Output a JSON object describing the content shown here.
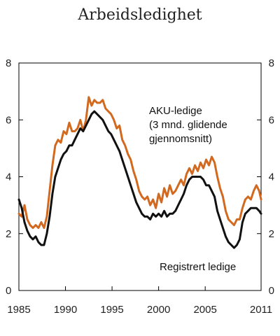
{
  "chart_data": {
    "type": "line",
    "title": "Arbeidsledighet",
    "xlabel": "",
    "ylabel": "",
    "xlim": [
      1985,
      2011
    ],
    "ylim": [
      0,
      8
    ],
    "grid": false,
    "x_ticks": [
      "1985",
      "1990",
      "1995",
      "2000",
      "2005",
      "2011"
    ],
    "x_tick_values": [
      1985,
      1990,
      1995,
      2000,
      2005,
      2011
    ],
    "y_ticks": [
      "0",
      "2",
      "4",
      "6",
      "8"
    ],
    "y_tick_values": [
      0,
      2,
      4,
      6,
      8
    ],
    "annotations": {
      "aku_line1": "AKU-ledige",
      "aku_line2": "(3 mnd. glidende",
      "aku_line3": "gjennomsnitt)",
      "registered": "Registrert ledige"
    },
    "series": [
      {
        "key": "aku",
        "color": "#d2691e",
        "points": [
          [
            1985.0,
            2.7
          ],
          [
            1985.3,
            2.6
          ],
          [
            1985.6,
            3.0
          ],
          [
            1985.9,
            2.5
          ],
          [
            1986.2,
            2.3
          ],
          [
            1986.5,
            2.2
          ],
          [
            1986.8,
            2.3
          ],
          [
            1987.1,
            2.2
          ],
          [
            1987.4,
            2.4
          ],
          [
            1987.7,
            2.2
          ],
          [
            1988.0,
            2.6
          ],
          [
            1988.3,
            3.5
          ],
          [
            1988.6,
            4.4
          ],
          [
            1988.9,
            5.1
          ],
          [
            1989.2,
            5.3
          ],
          [
            1989.5,
            5.2
          ],
          [
            1989.8,
            5.6
          ],
          [
            1990.1,
            5.5
          ],
          [
            1990.4,
            5.9
          ],
          [
            1990.7,
            5.6
          ],
          [
            1991.0,
            5.6
          ],
          [
            1991.3,
            5.7
          ],
          [
            1991.6,
            6.0
          ],
          [
            1991.9,
            5.6
          ],
          [
            1992.2,
            6.0
          ],
          [
            1992.5,
            6.8
          ],
          [
            1992.8,
            6.5
          ],
          [
            1993.1,
            6.7
          ],
          [
            1993.4,
            6.6
          ],
          [
            1993.7,
            6.6
          ],
          [
            1994.0,
            6.7
          ],
          [
            1994.3,
            6.4
          ],
          [
            1994.6,
            6.3
          ],
          [
            1994.9,
            6.2
          ],
          [
            1995.2,
            6.0
          ],
          [
            1995.5,
            5.7
          ],
          [
            1995.8,
            5.8
          ],
          [
            1996.1,
            5.3
          ],
          [
            1996.4,
            5.1
          ],
          [
            1996.7,
            4.8
          ],
          [
            1997.0,
            4.6
          ],
          [
            1997.3,
            4.2
          ],
          [
            1997.6,
            3.9
          ],
          [
            1997.9,
            3.5
          ],
          [
            1998.2,
            3.3
          ],
          [
            1998.5,
            3.2
          ],
          [
            1998.8,
            3.3
          ],
          [
            1999.1,
            3.0
          ],
          [
            1999.4,
            3.2
          ],
          [
            1999.7,
            2.9
          ],
          [
            2000.0,
            3.4
          ],
          [
            2000.3,
            3.1
          ],
          [
            2000.6,
            3.6
          ],
          [
            2000.9,
            3.3
          ],
          [
            2001.2,
            3.7
          ],
          [
            2001.5,
            3.4
          ],
          [
            2001.8,
            3.5
          ],
          [
            2002.1,
            3.7
          ],
          [
            2002.4,
            3.9
          ],
          [
            2002.7,
            3.7
          ],
          [
            2003.0,
            4.1
          ],
          [
            2003.3,
            4.3
          ],
          [
            2003.6,
            4.1
          ],
          [
            2003.9,
            4.4
          ],
          [
            2004.2,
            4.2
          ],
          [
            2004.5,
            4.5
          ],
          [
            2004.8,
            4.3
          ],
          [
            2005.1,
            4.6
          ],
          [
            2005.4,
            4.4
          ],
          [
            2005.7,
            4.7
          ],
          [
            2006.0,
            4.5
          ],
          [
            2006.3,
            4.0
          ],
          [
            2006.6,
            3.6
          ],
          [
            2006.9,
            3.3
          ],
          [
            2007.2,
            2.8
          ],
          [
            2007.5,
            2.5
          ],
          [
            2007.8,
            2.4
          ],
          [
            2008.1,
            2.3
          ],
          [
            2008.4,
            2.5
          ],
          [
            2008.7,
            2.5
          ],
          [
            2009.0,
            2.9
          ],
          [
            2009.3,
            3.2
          ],
          [
            2009.6,
            3.3
          ],
          [
            2009.9,
            3.2
          ],
          [
            2010.2,
            3.5
          ],
          [
            2010.5,
            3.7
          ],
          [
            2010.8,
            3.5
          ],
          [
            2011.0,
            3.2
          ]
        ]
      },
      {
        "key": "registered",
        "color": "#111111",
        "points": [
          [
            1985.0,
            3.2
          ],
          [
            1985.3,
            2.9
          ],
          [
            1985.6,
            2.4
          ],
          [
            1985.9,
            2.1
          ],
          [
            1986.2,
            1.9
          ],
          [
            1986.5,
            1.8
          ],
          [
            1986.8,
            1.9
          ],
          [
            1987.1,
            1.7
          ],
          [
            1987.4,
            1.6
          ],
          [
            1987.7,
            1.6
          ],
          [
            1988.0,
            2.0
          ],
          [
            1988.3,
            2.6
          ],
          [
            1988.6,
            3.4
          ],
          [
            1988.9,
            4.0
          ],
          [
            1989.2,
            4.3
          ],
          [
            1989.5,
            4.6
          ],
          [
            1989.8,
            4.8
          ],
          [
            1990.1,
            4.9
          ],
          [
            1990.4,
            5.1
          ],
          [
            1990.7,
            5.1
          ],
          [
            1991.0,
            5.3
          ],
          [
            1991.3,
            5.5
          ],
          [
            1991.6,
            5.7
          ],
          [
            1991.9,
            5.6
          ],
          [
            1992.2,
            5.8
          ],
          [
            1992.5,
            6.0
          ],
          [
            1992.8,
            6.2
          ],
          [
            1993.1,
            6.3
          ],
          [
            1993.4,
            6.2
          ],
          [
            1993.7,
            6.1
          ],
          [
            1994.0,
            6.0
          ],
          [
            1994.3,
            5.8
          ],
          [
            1994.6,
            5.6
          ],
          [
            1994.9,
            5.5
          ],
          [
            1995.2,
            5.3
          ],
          [
            1995.5,
            5.1
          ],
          [
            1995.8,
            4.9
          ],
          [
            1996.1,
            4.6
          ],
          [
            1996.4,
            4.3
          ],
          [
            1996.7,
            4.0
          ],
          [
            1997.0,
            3.7
          ],
          [
            1997.3,
            3.4
          ],
          [
            1997.6,
            3.1
          ],
          [
            1997.9,
            2.9
          ],
          [
            1998.2,
            2.7
          ],
          [
            1998.5,
            2.6
          ],
          [
            1998.8,
            2.6
          ],
          [
            1999.1,
            2.5
          ],
          [
            1999.4,
            2.7
          ],
          [
            1999.7,
            2.6
          ],
          [
            2000.0,
            2.7
          ],
          [
            2000.3,
            2.6
          ],
          [
            2000.6,
            2.8
          ],
          [
            2000.9,
            2.6
          ],
          [
            2001.2,
            2.7
          ],
          [
            2001.5,
            2.7
          ],
          [
            2001.8,
            2.8
          ],
          [
            2002.1,
            3.0
          ],
          [
            2002.4,
            3.2
          ],
          [
            2002.7,
            3.4
          ],
          [
            2003.0,
            3.7
          ],
          [
            2003.3,
            3.9
          ],
          [
            2003.6,
            4.0
          ],
          [
            2003.9,
            4.0
          ],
          [
            2004.2,
            4.0
          ],
          [
            2004.5,
            4.0
          ],
          [
            2004.8,
            3.9
          ],
          [
            2005.1,
            3.7
          ],
          [
            2005.4,
            3.7
          ],
          [
            2005.7,
            3.5
          ],
          [
            2006.0,
            3.3
          ],
          [
            2006.3,
            2.8
          ],
          [
            2006.6,
            2.5
          ],
          [
            2006.9,
            2.2
          ],
          [
            2007.2,
            1.9
          ],
          [
            2007.5,
            1.7
          ],
          [
            2007.8,
            1.6
          ],
          [
            2008.1,
            1.5
          ],
          [
            2008.4,
            1.6
          ],
          [
            2008.7,
            1.8
          ],
          [
            2009.0,
            2.4
          ],
          [
            2009.3,
            2.7
          ],
          [
            2009.6,
            2.8
          ],
          [
            2009.9,
            2.9
          ],
          [
            2010.2,
            2.9
          ],
          [
            2010.5,
            2.9
          ],
          [
            2010.8,
            2.8
          ],
          [
            2011.0,
            2.7
          ]
        ]
      }
    ]
  }
}
